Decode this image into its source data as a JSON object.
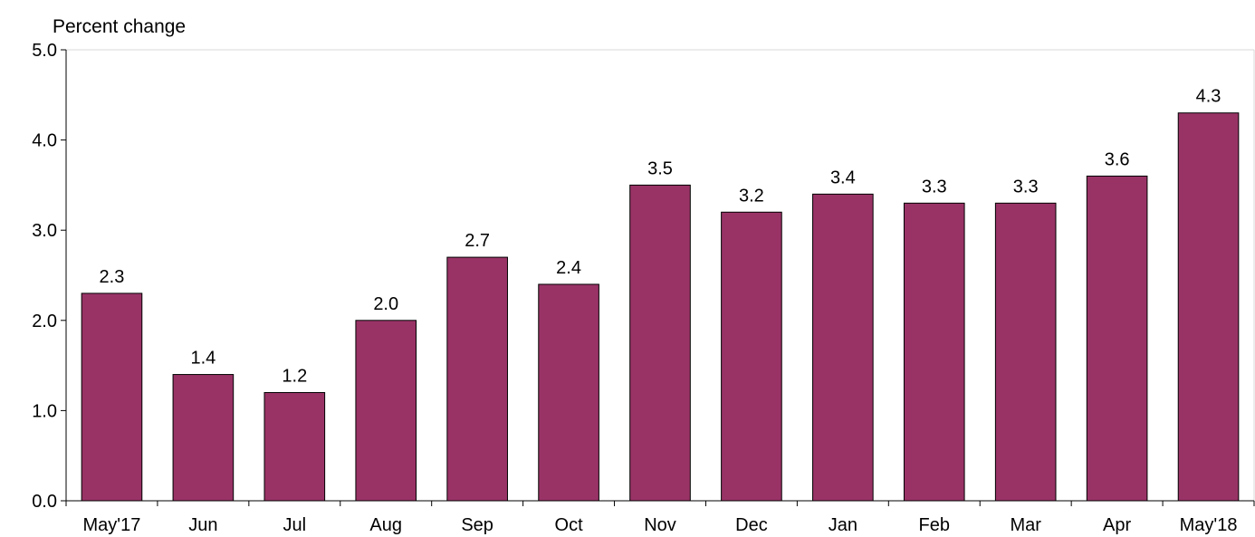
{
  "chart_data": {
    "type": "bar",
    "title": "",
    "ylabel": "Percent change",
    "xlabel": "",
    "categories": [
      "May'17",
      "Jun",
      "Jul",
      "Aug",
      "Sep",
      "Oct",
      "Nov",
      "Dec",
      "Jan",
      "Feb",
      "Mar",
      "Apr",
      "May'18"
    ],
    "values": [
      2.3,
      1.4,
      1.2,
      2.0,
      2.7,
      2.4,
      3.5,
      3.2,
      3.4,
      3.3,
      3.3,
      3.6,
      4.3
    ],
    "data_labels": [
      "2.3",
      "1.4",
      "1.2",
      "2.0",
      "2.7",
      "2.4",
      "3.5",
      "3.2",
      "3.4",
      "3.3",
      "3.3",
      "3.6",
      "4.3"
    ],
    "ylim": [
      0,
      5
    ],
    "yticks": [
      "0.0",
      "1.0",
      "2.0",
      "3.0",
      "4.0",
      "5.0"
    ],
    "grid": false,
    "legend": "none",
    "colors": {
      "bar": "#993366",
      "axis": "#000000"
    }
  }
}
